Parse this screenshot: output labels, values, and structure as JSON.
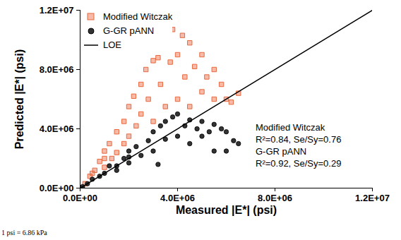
{
  "chart_data": {
    "type": "scatter",
    "xlabel": "Measured |E*| (psi)",
    "ylabel": "Predicted |E*| (psi)",
    "caption": "1 psi = 6.86 kPa",
    "annotations": [
      "Modified Witczak",
      "R²=0.84, Se/Sy=0.76",
      "G-GR pANN",
      "R²=0.92, Se/Sy=0.29"
    ],
    "xlim": [
      0,
      12000000
    ],
    "ylim": [
      0,
      12000000
    ],
    "xticks": [
      {
        "value": 0,
        "label": "0.0E+00"
      },
      {
        "value": 4000000,
        "label": "4.0E+06"
      },
      {
        "value": 8000000,
        "label": "8.0E+06"
      },
      {
        "value": 12000000,
        "label": "1.2E+07"
      }
    ],
    "yticks": [
      {
        "value": 0,
        "label": "0.0E+00"
      },
      {
        "value": 4000000,
        "label": "4.0E+06"
      },
      {
        "value": 8000000,
        "label": "8.0E+06"
      },
      {
        "value": 12000000,
        "label": "1.2E+07"
      }
    ],
    "grid": false,
    "legend": "top-left",
    "series": [
      {
        "name": "Modified Witczak",
        "color": "#e8683f",
        "marker": "square",
        "type": "scatter",
        "x": [
          200000,
          400000,
          600000,
          800000,
          1000000,
          1000000,
          1200000,
          1300000,
          1500000,
          1500000,
          1800000,
          1800000,
          2000000,
          2000000,
          2200000,
          2300000,
          2500000,
          2500000,
          2700000,
          2800000,
          3000000,
          3000000,
          3200000,
          3300000,
          3600000,
          3500000,
          3700000,
          3800000,
          4000000,
          4000000,
          4200000,
          4300000,
          4500000,
          4500000,
          4700000,
          5000000,
          5000000,
          5200000,
          5500000,
          5500000,
          5800000,
          6000000,
          6200000,
          6500000,
          1000000,
          500000
        ],
        "values": [
          300000,
          800000,
          1200000,
          1800000,
          2500000,
          1400000,
          3000000,
          2000000,
          3800000,
          2400000,
          4500000,
          3000000,
          5500000,
          3500000,
          6200000,
          4200000,
          7000000,
          5000000,
          8000000,
          6000000,
          8600000,
          4500000,
          8800000,
          7000000,
          9800000,
          5500000,
          8500000,
          10700000,
          9000000,
          6000000,
          10300000,
          7500000,
          9800000,
          5500000,
          8200000,
          9000000,
          6500000,
          7500000,
          8000000,
          6000000,
          7000000,
          6000000,
          5800000,
          6400000,
          2000000,
          1000000
        ]
      },
      {
        "name": "G-GR pANN",
        "color": "#333333",
        "marker": "circle",
        "type": "scatter",
        "x": [
          100000,
          300000,
          500000,
          800000,
          1000000,
          1200000,
          1500000,
          1500000,
          1800000,
          2000000,
          2000000,
          2300000,
          2500000,
          2800000,
          3000000,
          3000000,
          3300000,
          3500000,
          3500000,
          3800000,
          4000000,
          4000000,
          4300000,
          4500000,
          4500000,
          4800000,
          5000000,
          5000000,
          5300000,
          5500000,
          5500000,
          5800000,
          6000000,
          6000000,
          6300000,
          6500000,
          2000000,
          3200000
        ],
        "values": [
          100000,
          300000,
          600000,
          800000,
          1000000,
          1500000,
          1500000,
          1200000,
          2000000,
          2500000,
          1700000,
          2800000,
          2200000,
          3200000,
          3800000,
          2500000,
          4200000,
          3300000,
          4500000,
          4800000,
          3500000,
          5000000,
          4200000,
          3000000,
          4600000,
          4000000,
          3500000,
          4500000,
          3800000,
          4300000,
          2500000,
          4000000,
          3800000,
          2500000,
          3200000,
          3000000,
          2100000,
          1600000
        ]
      },
      {
        "name": "LOE",
        "color": "#000000",
        "type": "line",
        "line_style": "solid",
        "x": [
          0,
          12000000
        ],
        "values": [
          0,
          12000000
        ]
      }
    ]
  }
}
